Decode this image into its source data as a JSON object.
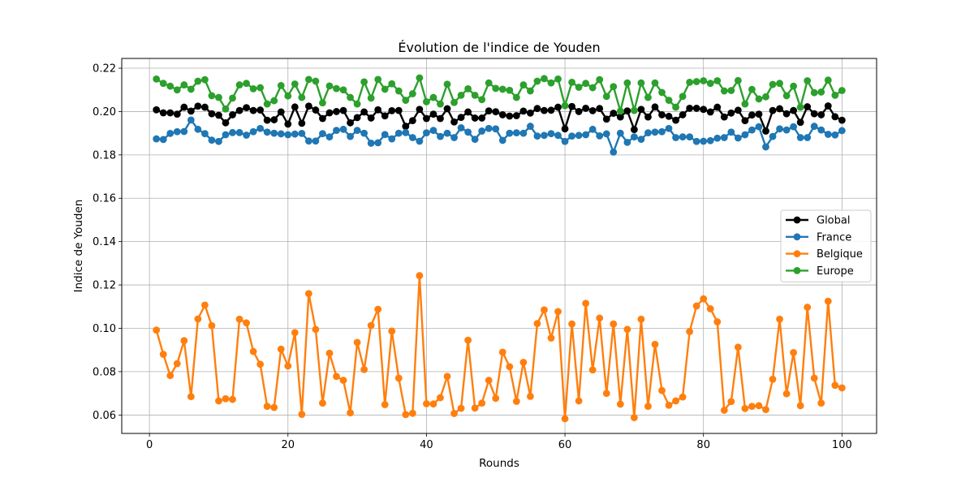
{
  "chart_data": {
    "type": "line",
    "title": "Évolution de l'indice de Youden",
    "xlabel": "Rounds",
    "ylabel": "Indice de Youden",
    "xlim": [
      -4,
      105
    ],
    "ylim": [
      0.0515,
      0.2245
    ],
    "xticks": [
      0,
      20,
      40,
      60,
      80,
      100
    ],
    "xtick_labels": [
      "0",
      "20",
      "40",
      "60",
      "80",
      "100"
    ],
    "yticks": [
      0.06,
      0.08,
      0.1,
      0.12,
      0.14,
      0.16,
      0.18,
      0.2,
      0.22
    ],
    "ytick_labels": [
      "0.06",
      "0.08",
      "0.10",
      "0.12",
      "0.14",
      "0.16",
      "0.18",
      "0.20",
      "0.22"
    ],
    "grid": true,
    "legend_position": "center-right",
    "x": [
      1,
      2,
      3,
      4,
      5,
      6,
      7,
      8,
      9,
      10,
      11,
      12,
      13,
      14,
      15,
      16,
      17,
      18,
      19,
      20,
      21,
      22,
      23,
      24,
      25,
      26,
      27,
      28,
      29,
      30,
      31,
      32,
      33,
      34,
      35,
      36,
      37,
      38,
      39,
      40,
      41,
      42,
      43,
      44,
      45,
      46,
      47,
      48,
      49,
      50,
      51,
      52,
      53,
      54,
      55,
      56,
      57,
      58,
      59,
      60,
      61,
      62,
      63,
      64,
      65,
      66,
      67,
      68,
      69,
      70,
      71,
      72,
      73,
      74,
      75,
      76,
      77,
      78,
      79,
      80,
      81,
      82,
      83,
      84,
      85,
      86,
      87,
      88,
      89,
      90,
      91,
      92,
      93,
      94,
      95,
      96,
      97,
      98,
      99,
      100
    ],
    "series": [
      {
        "name": "Global",
        "color": "#000000",
        "values": [
          0.2008,
          0.1994,
          0.1994,
          0.1988,
          0.202,
          0.2002,
          0.2025,
          0.202,
          0.199,
          0.1983,
          0.1948,
          0.1985,
          0.2005,
          0.2018,
          0.2005,
          0.2007,
          0.196,
          0.1962,
          0.1998,
          0.1942,
          0.2021,
          0.1946,
          0.2025,
          0.2007,
          0.1968,
          0.1994,
          0.2,
          0.2005,
          0.1948,
          0.1972,
          0.1998,
          0.197,
          0.2008,
          0.198,
          0.2004,
          0.2005,
          0.1932,
          0.1958,
          0.201,
          0.1968,
          0.1988,
          0.1968,
          0.2013,
          0.1952,
          0.1973,
          0.1998,
          0.197,
          0.197,
          0.2003,
          0.1999,
          0.1985,
          0.1979,
          0.1981,
          0.2002,
          0.1993,
          0.2014,
          0.2005,
          0.2006,
          0.202,
          0.192,
          0.2023,
          0.2,
          0.2015,
          0.2004,
          0.2014,
          0.1965,
          0.1992,
          0.1975,
          0.2003,
          0.1917,
          0.201,
          0.1975,
          0.2021,
          0.1985,
          0.1978,
          0.196,
          0.1985,
          0.2015,
          0.2015,
          0.201,
          0.1998,
          0.202,
          0.1975,
          0.1993,
          0.2006,
          0.1958,
          0.1984,
          0.1988,
          0.191,
          0.2005,
          0.2013,
          0.199,
          0.2005,
          0.195,
          0.2022,
          0.199,
          0.1985,
          0.2026,
          0.1976,
          0.196
        ]
      },
      {
        "name": "France",
        "color": "#1f77b4",
        "values": [
          0.1874,
          0.1871,
          0.1899,
          0.1907,
          0.1908,
          0.1961,
          0.1918,
          0.1898,
          0.1868,
          0.1862,
          0.1893,
          0.1903,
          0.1903,
          0.1891,
          0.1907,
          0.1922,
          0.1905,
          0.19,
          0.1897,
          0.1893,
          0.1896,
          0.1899,
          0.1864,
          0.1864,
          0.1898,
          0.1883,
          0.1913,
          0.1918,
          0.1885,
          0.1913,
          0.19,
          0.1854,
          0.1856,
          0.1894,
          0.1874,
          0.19,
          0.1903,
          0.188,
          0.1863,
          0.1902,
          0.1913,
          0.1885,
          0.19,
          0.188,
          0.1925,
          0.1905,
          0.1872,
          0.191,
          0.1922,
          0.192,
          0.1867,
          0.19,
          0.1902,
          0.19,
          0.1932,
          0.1887,
          0.189,
          0.1898,
          0.189,
          0.1862,
          0.1887,
          0.189,
          0.1893,
          0.1918,
          0.1888,
          0.1897,
          0.1813,
          0.19,
          0.1858,
          0.1883,
          0.1872,
          0.1902,
          0.1905,
          0.1907,
          0.1922,
          0.188,
          0.1883,
          0.1883,
          0.1862,
          0.1863,
          0.1866,
          0.1877,
          0.188,
          0.1905,
          0.1878,
          0.1893,
          0.1915,
          0.193,
          0.1837,
          0.1885,
          0.192,
          0.1915,
          0.193,
          0.188,
          0.188,
          0.1932,
          0.1915,
          0.1895,
          0.1892,
          0.1912
        ]
      },
      {
        "name": "Belgique",
        "color": "#ff7f0e",
        "values": [
          0.0992,
          0.088,
          0.0782,
          0.0837,
          0.0943,
          0.0685,
          0.1043,
          0.1107,
          0.1012,
          0.0665,
          0.0675,
          0.0672,
          0.1042,
          0.1025,
          0.0893,
          0.0834,
          0.064,
          0.0635,
          0.0904,
          0.0826,
          0.098,
          0.0603,
          0.116,
          0.0995,
          0.0655,
          0.0885,
          0.0778,
          0.076,
          0.061,
          0.0935,
          0.081,
          0.1013,
          0.1088,
          0.0648,
          0.0987,
          0.077,
          0.0602,
          0.0608,
          0.1243,
          0.0652,
          0.0651,
          0.068,
          0.0778,
          0.0607,
          0.0631,
          0.0945,
          0.0632,
          0.0655,
          0.076,
          0.0677,
          0.089,
          0.0823,
          0.0663,
          0.0843,
          0.0686,
          0.1022,
          0.1085,
          0.0955,
          0.1077,
          0.0583,
          0.102,
          0.0665,
          0.1115,
          0.0808,
          0.1047,
          0.07,
          0.102,
          0.065,
          0.0995,
          0.0588,
          0.1042,
          0.064,
          0.0926,
          0.0713,
          0.0645,
          0.0665,
          0.0683,
          0.0985,
          0.1103,
          0.1136,
          0.109,
          0.103,
          0.0622,
          0.0662,
          0.0913,
          0.063,
          0.064,
          0.0643,
          0.0625,
          0.0765,
          0.1042,
          0.0698,
          0.0888,
          0.0643,
          0.1097,
          0.077,
          0.0655,
          0.1125,
          0.0737,
          0.0725
        ]
      },
      {
        "name": "Europe",
        "color": "#2ca02c",
        "values": [
          0.215,
          0.213,
          0.2117,
          0.21,
          0.2123,
          0.2103,
          0.214,
          0.2147,
          0.2073,
          0.2065,
          0.2012,
          0.2062,
          0.2123,
          0.213,
          0.2105,
          0.211,
          0.2035,
          0.205,
          0.212,
          0.2072,
          0.2127,
          0.2065,
          0.2148,
          0.214,
          0.204,
          0.2118,
          0.2106,
          0.21,
          0.2065,
          0.2035,
          0.2137,
          0.2062,
          0.2148,
          0.2103,
          0.2128,
          0.2095,
          0.2052,
          0.2082,
          0.2155,
          0.2045,
          0.2065,
          0.2035,
          0.2126,
          0.2042,
          0.2075,
          0.2105,
          0.2075,
          0.2055,
          0.2132,
          0.2107,
          0.2103,
          0.2098,
          0.2065,
          0.2123,
          0.2095,
          0.214,
          0.2152,
          0.2132,
          0.215,
          0.2027,
          0.2135,
          0.2112,
          0.213,
          0.211,
          0.2147,
          0.207,
          0.2115,
          0.2002,
          0.2132,
          0.2005,
          0.2132,
          0.2065,
          0.2132,
          0.2088,
          0.2052,
          0.202,
          0.207,
          0.2135,
          0.2138,
          0.2142,
          0.213,
          0.2142,
          0.2095,
          0.2097,
          0.2143,
          0.2035,
          0.2102,
          0.2058,
          0.2068,
          0.2125,
          0.213,
          0.2073,
          0.2117,
          0.202,
          0.2142,
          0.2087,
          0.209,
          0.2145,
          0.2075,
          0.2097
        ]
      }
    ]
  }
}
